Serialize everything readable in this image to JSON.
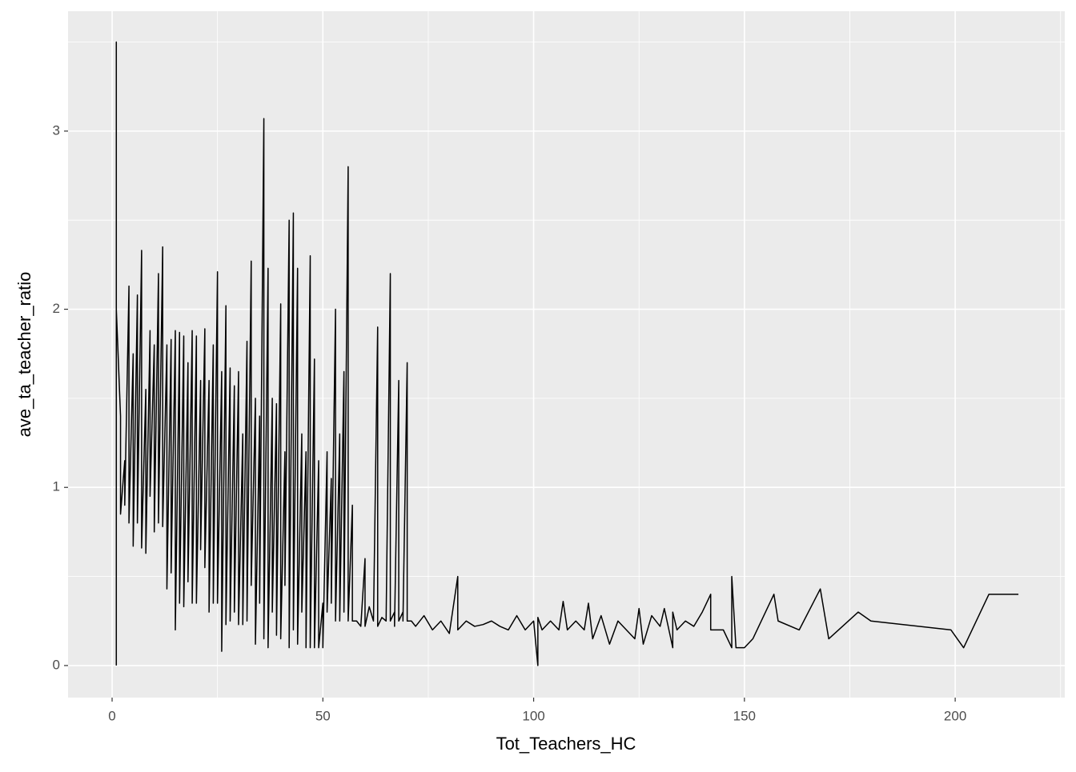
{
  "chart_data": {
    "type": "line",
    "x_label": "Tot_Teachers_HC",
    "y_label": "ave_ta_teacher_ratio",
    "xlim": [
      -10.45,
      226
    ],
    "ylim": [
      -0.18,
      3.673
    ],
    "xticks": [
      0,
      50,
      100,
      150,
      200
    ],
    "yticks": [
      0,
      1,
      2,
      3
    ],
    "grid": true,
    "color": "#000000",
    "x": [
      1,
      1,
      1,
      2,
      2,
      3,
      3,
      4,
      4,
      5,
      5,
      6,
      6,
      7,
      7,
      8,
      8,
      9,
      9,
      10,
      10,
      11,
      11,
      12,
      12,
      13,
      13,
      14,
      14,
      15,
      15,
      16,
      16,
      17,
      17,
      18,
      18,
      19,
      19,
      20,
      20,
      21,
      21,
      22,
      22,
      23,
      23,
      24,
      24,
      25,
      25,
      26,
      26,
      27,
      27,
      28,
      28,
      29,
      29,
      30,
      30,
      31,
      31,
      32,
      32,
      33,
      33,
      34,
      34,
      35,
      35,
      36,
      36,
      37,
      37,
      38,
      38,
      39,
      39,
      40,
      40,
      41,
      41,
      42,
      42,
      43,
      43,
      44,
      44,
      45,
      45,
      46,
      46,
      47,
      47,
      48,
      48,
      49,
      49,
      50,
      50,
      51,
      51,
      52,
      52,
      53,
      53,
      54,
      54,
      55,
      55,
      56,
      56,
      57,
      57,
      58,
      59,
      60,
      60,
      61,
      62,
      63,
      63,
      64,
      65,
      66,
      66,
      67,
      67,
      68,
      68,
      69,
      69,
      70,
      70,
      71,
      72,
      74,
      76,
      78,
      80,
      82,
      82,
      84,
      86,
      88,
      90,
      92,
      94,
      96,
      98,
      100,
      101,
      101,
      102,
      104,
      106,
      107,
      108,
      110,
      112,
      113,
      114,
      116,
      118,
      120,
      122,
      124,
      125,
      126,
      128,
      130,
      131,
      133,
      133,
      134,
      136,
      138,
      140,
      142,
      142,
      145,
      147,
      147,
      148,
      150,
      152,
      157,
      158,
      163,
      168,
      170,
      177,
      180,
      199,
      202,
      208,
      215
    ],
    "values": [
      0,
      3.5,
      2.0,
      1.4,
      0.85,
      1.15,
      0.9,
      2.13,
      0.8,
      1.75,
      0.67,
      2.08,
      0.8,
      2.33,
      0.66,
      1.55,
      0.63,
      1.88,
      0.95,
      1.8,
      0.75,
      2.2,
      0.8,
      2.35,
      0.78,
      1.8,
      0.43,
      1.83,
      0.52,
      1.88,
      0.2,
      1.87,
      0.35,
      1.85,
      0.33,
      1.7,
      0.47,
      1.88,
      0.35,
      1.85,
      0.35,
      1.6,
      0.65,
      1.89,
      0.55,
      1.6,
      0.3,
      1.8,
      0.35,
      2.21,
      0.35,
      1.65,
      0.08,
      2.02,
      0.23,
      1.67,
      0.25,
      1.57,
      0.3,
      1.65,
      0.23,
      1.3,
      0.23,
      1.82,
      0.25,
      2.27,
      0.45,
      1.5,
      0.12,
      1.4,
      0.35,
      3.07,
      0.15,
      2.23,
      0.1,
      1.5,
      0.3,
      1.47,
      0.17,
      2.03,
      0.15,
      1.2,
      0.45,
      2.5,
      0.1,
      2.54,
      0.2,
      2.23,
      0.12,
      1.3,
      0.3,
      1.2,
      0.1,
      2.3,
      0.1,
      1.72,
      0.1,
      1.15,
      0.1,
      0.35,
      0.1,
      1.2,
      0.3,
      1.05,
      0.35,
      2.0,
      0.25,
      1.3,
      0.25,
      1.65,
      0.3,
      2.8,
      0.25,
      0.9,
      0.25,
      0.25,
      0.22,
      0.6,
      0.22,
      0.33,
      0.25,
      1.9,
      0.22,
      0.27,
      0.25,
      2.2,
      0.25,
      0.3,
      0.22,
      1.6,
      0.25,
      0.3,
      0.25,
      1.7,
      0.25,
      0.25,
      0.22,
      0.28,
      0.2,
      0.25,
      0.18,
      0.5,
      0.2,
      0.25,
      0.22,
      0.23,
      0.25,
      0.22,
      0.2,
      0.28,
      0.2,
      0.25,
      0,
      0.27,
      0.2,
      0.25,
      0.2,
      0.36,
      0.2,
      0.25,
      0.2,
      0.35,
      0.15,
      0.28,
      0.12,
      0.25,
      0.2,
      0.15,
      0.32,
      0.12,
      0.28,
      0.22,
      0.32,
      0.1,
      0.3,
      0.2,
      0.25,
      0.22,
      0.3,
      0.4,
      0.2,
      0.2,
      0.1,
      0.5,
      0.1,
      0.1,
      0.15,
      0.4,
      0.25,
      0.2,
      0.43,
      0.15,
      0.3,
      0.25,
      0.2,
      0.1,
      0.4,
      0.4
    ]
  }
}
